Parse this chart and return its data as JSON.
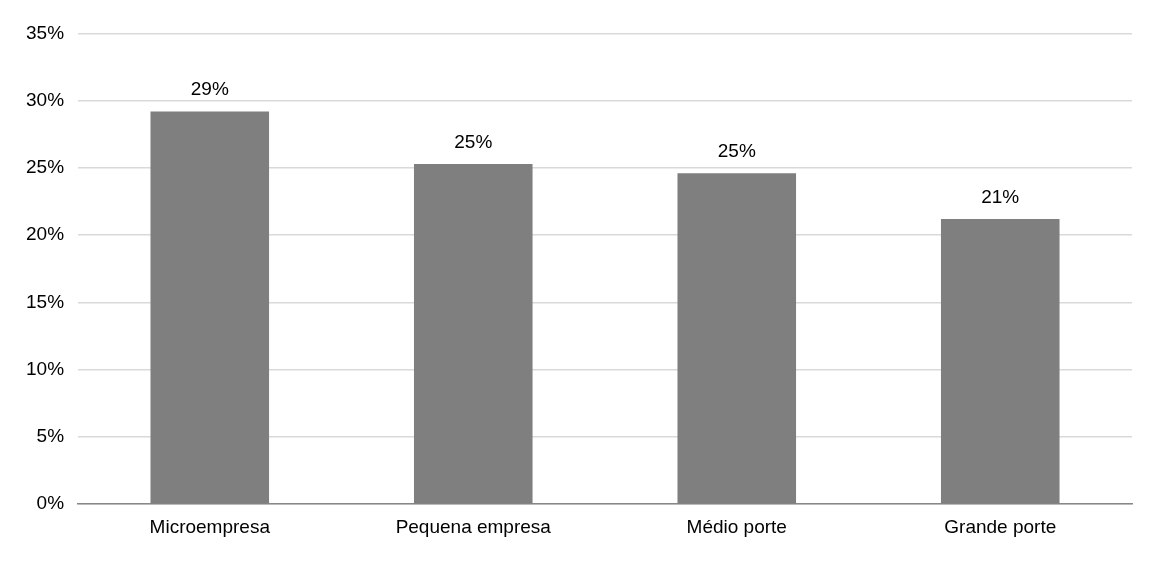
{
  "chart_data": {
    "type": "bar",
    "categories": [
      "Microempresa",
      "Pequena empresa",
      "Médio porte",
      "Grande porte"
    ],
    "values": [
      29.2,
      25.3,
      24.6,
      21.2
    ],
    "value_labels": [
      "29%",
      "25%",
      "25%",
      "21%"
    ],
    "color": "#7f7f7f",
    "ylim": [
      0,
      35
    ],
    "yticks": [
      {
        "value": 0,
        "label": "0%"
      },
      {
        "value": 5,
        "label": "5%"
      },
      {
        "value": 10,
        "label": "10%"
      },
      {
        "value": 15,
        "label": "15%"
      },
      {
        "value": 20,
        "label": "20%"
      },
      {
        "value": 25,
        "label": "25%"
      },
      {
        "value": 30,
        "label": "30%"
      },
      {
        "value": 35,
        "label": "35%"
      }
    ],
    "grid": "y",
    "legend": false
  }
}
